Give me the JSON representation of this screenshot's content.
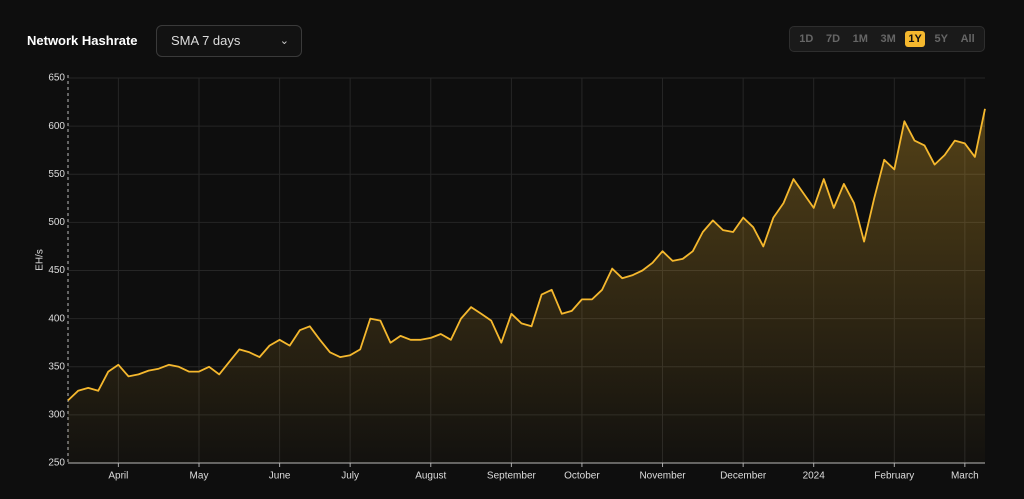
{
  "header": {
    "title": "Network Hashrate",
    "dropdown": "SMA 7 days",
    "ranges": [
      "1D",
      "7D",
      "1M",
      "3M",
      "1Y",
      "5Y",
      "All"
    ],
    "active_range": 4
  },
  "chart_data": {
    "type": "line",
    "area": true,
    "y_label": "EH/s",
    "color": "#f5b82e",
    "grid": true,
    "categories": [
      null,
      null,
      null,
      null,
      null,
      "April",
      null,
      null,
      null,
      null,
      null,
      null,
      null,
      "May",
      null,
      null,
      null,
      null,
      null,
      null,
      null,
      "June",
      null,
      null,
      null,
      null,
      null,
      null,
      "July",
      null,
      null,
      null,
      null,
      null,
      null,
      null,
      "August",
      null,
      null,
      null,
      null,
      null,
      null,
      null,
      "September",
      null,
      null,
      null,
      null,
      null,
      null,
      "October",
      null,
      null,
      null,
      null,
      null,
      null,
      null,
      "November",
      null,
      null,
      null,
      null,
      null,
      null,
      null,
      "December",
      null,
      null,
      null,
      null,
      null,
      null,
      "2024",
      null,
      null,
      null,
      null,
      null,
      null,
      null,
      "February",
      null,
      null,
      null,
      null,
      null,
      null,
      "March",
      null,
      null
    ],
    "values": [
      315,
      325,
      328,
      325,
      345,
      352,
      340,
      342,
      346,
      348,
      352,
      350,
      345,
      345,
      350,
      342,
      355,
      368,
      365,
      360,
      372,
      378,
      372,
      388,
      392,
      378,
      365,
      360,
      362,
      368,
      400,
      398,
      375,
      382,
      378,
      378,
      380,
      384,
      378,
      400,
      412,
      405,
      398,
      375,
      405,
      395,
      392,
      425,
      430,
      405,
      408,
      420,
      420,
      430,
      452,
      442,
      445,
      450,
      458,
      470,
      460,
      462,
      470,
      490,
      502,
      492,
      490,
      505,
      495,
      475,
      505,
      520,
      545,
      530,
      515,
      545,
      515,
      540,
      520,
      480,
      525,
      565,
      555,
      605,
      585,
      580,
      560,
      570,
      585,
      582,
      568,
      618
    ],
    "ylim": [
      250,
      650
    ],
    "yticks": [
      250,
      300,
      350,
      400,
      450,
      500,
      550,
      600,
      650
    ]
  }
}
